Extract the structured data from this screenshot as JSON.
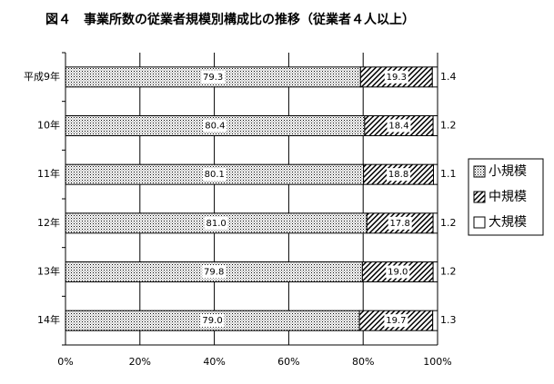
{
  "chart_data": {
    "type": "stacked-barh",
    "title": "図４　事業所数の従業者規模別構成比の推移（従業者４人以上）",
    "categories": [
      "平成9年",
      "10年",
      "11年",
      "12年",
      "13年",
      "14年"
    ],
    "series": [
      {
        "name": "小規模",
        "color": "#000000",
        "pattern": "dots",
        "values": [
          79.3,
          80.4,
          80.1,
          81.0,
          79.8,
          79.0
        ],
        "value_labels": [
          "79.3",
          "80.4",
          "80.1",
          "81.0",
          "79.8",
          "79.0"
        ]
      },
      {
        "name": "中規模",
        "color": "#000000",
        "pattern": "hatch",
        "values": [
          19.3,
          18.4,
          18.8,
          17.8,
          19.0,
          19.7
        ],
        "value_labels": [
          "19.3",
          "18.4",
          "18.8",
          "17.8",
          "19.0",
          "19.7"
        ]
      },
      {
        "name": "大規模",
        "color": "#000000",
        "pattern": "none",
        "values": [
          1.4,
          1.2,
          1.1,
          1.2,
          1.2,
          1.3
        ],
        "value_labels": [
          "1.4",
          "1.2",
          "1.1",
          "1.2",
          "1.2",
          "1.3"
        ]
      }
    ],
    "xlim": [
      0,
      100
    ],
    "xticks": [
      {
        "value": 0,
        "label": "0%"
      },
      {
        "value": 20,
        "label": "20%"
      },
      {
        "value": 40,
        "label": "40%"
      },
      {
        "value": 60,
        "label": "60%"
      },
      {
        "value": 80,
        "label": "80%"
      },
      {
        "value": 100,
        "label": "100%"
      }
    ],
    "grid": true,
    "legend": "right"
  }
}
